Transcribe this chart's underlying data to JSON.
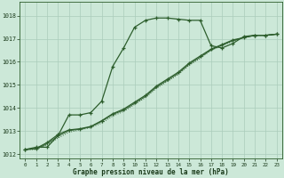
{
  "background_color": "#cce8d8",
  "grid_color": "#aaccbb",
  "line_color": "#2d5e2d",
  "marker_color": "#2d5e2d",
  "title_color": "#1a3a1a",
  "xlabel": "Graphe pression niveau de la mer (hPa)",
  "xlim": [
    -0.5,
    23.5
  ],
  "ylim": [
    1011.8,
    1018.6
  ],
  "yticks": [
    1012,
    1013,
    1014,
    1015,
    1016,
    1017,
    1018
  ],
  "xticks": [
    0,
    1,
    2,
    3,
    4,
    5,
    6,
    7,
    8,
    9,
    10,
    11,
    12,
    13,
    14,
    15,
    16,
    17,
    18,
    19,
    20,
    21,
    22,
    23
  ],
  "series1_x": [
    0,
    1,
    2,
    3,
    4,
    5,
    6,
    7,
    8,
    9,
    10,
    11,
    12,
    13,
    14,
    15,
    16,
    17,
    18,
    19,
    20,
    21,
    22,
    23
  ],
  "series1_y": [
    1012.2,
    1012.3,
    1012.3,
    1012.8,
    1013.7,
    1013.7,
    1013.8,
    1014.3,
    1015.8,
    1016.6,
    1017.5,
    1017.8,
    1017.9,
    1017.9,
    1017.85,
    1017.8,
    1017.8,
    1016.7,
    1016.6,
    1016.8,
    1017.1,
    1017.15,
    1017.15,
    1017.2
  ],
  "series2_x": [
    0,
    1,
    2,
    3,
    4,
    5,
    6,
    7,
    8,
    9,
    10,
    11,
    12,
    13,
    14,
    15,
    16,
    17,
    18,
    19,
    20,
    21,
    22,
    23
  ],
  "series2_y": [
    1012.2,
    1012.25,
    1012.5,
    1012.85,
    1013.05,
    1013.1,
    1013.2,
    1013.45,
    1013.75,
    1013.95,
    1014.25,
    1014.55,
    1014.95,
    1015.25,
    1015.55,
    1015.95,
    1016.25,
    1016.55,
    1016.75,
    1016.95,
    1017.05,
    1017.15,
    1017.15,
    1017.2
  ],
  "series3_x": [
    0,
    1,
    2,
    3,
    4,
    5,
    6,
    7,
    8,
    9,
    10,
    11,
    12,
    13,
    14,
    15,
    16,
    17,
    18,
    19,
    20,
    21,
    22,
    23
  ],
  "series3_y": [
    1012.2,
    1012.2,
    1012.4,
    1012.7,
    1012.95,
    1013.05,
    1013.15,
    1013.35,
    1013.65,
    1013.85,
    1014.15,
    1014.45,
    1014.85,
    1015.15,
    1015.45,
    1015.85,
    1016.15,
    1016.5,
    1016.7,
    1016.9,
    1017.05,
    1017.15,
    1017.15,
    1017.2
  ],
  "series4_x": [
    0,
    1,
    2,
    3,
    4,
    5,
    6,
    7,
    8,
    9,
    10,
    11,
    12,
    13,
    14,
    15,
    16,
    17,
    18,
    19,
    20,
    21,
    22,
    23
  ],
  "series4_y": [
    1012.2,
    1012.22,
    1012.45,
    1012.78,
    1013.02,
    1013.08,
    1013.18,
    1013.42,
    1013.72,
    1013.9,
    1014.2,
    1014.5,
    1014.9,
    1015.2,
    1015.5,
    1015.9,
    1016.2,
    1016.52,
    1016.72,
    1016.92,
    1017.05,
    1017.15,
    1017.15,
    1017.2
  ]
}
